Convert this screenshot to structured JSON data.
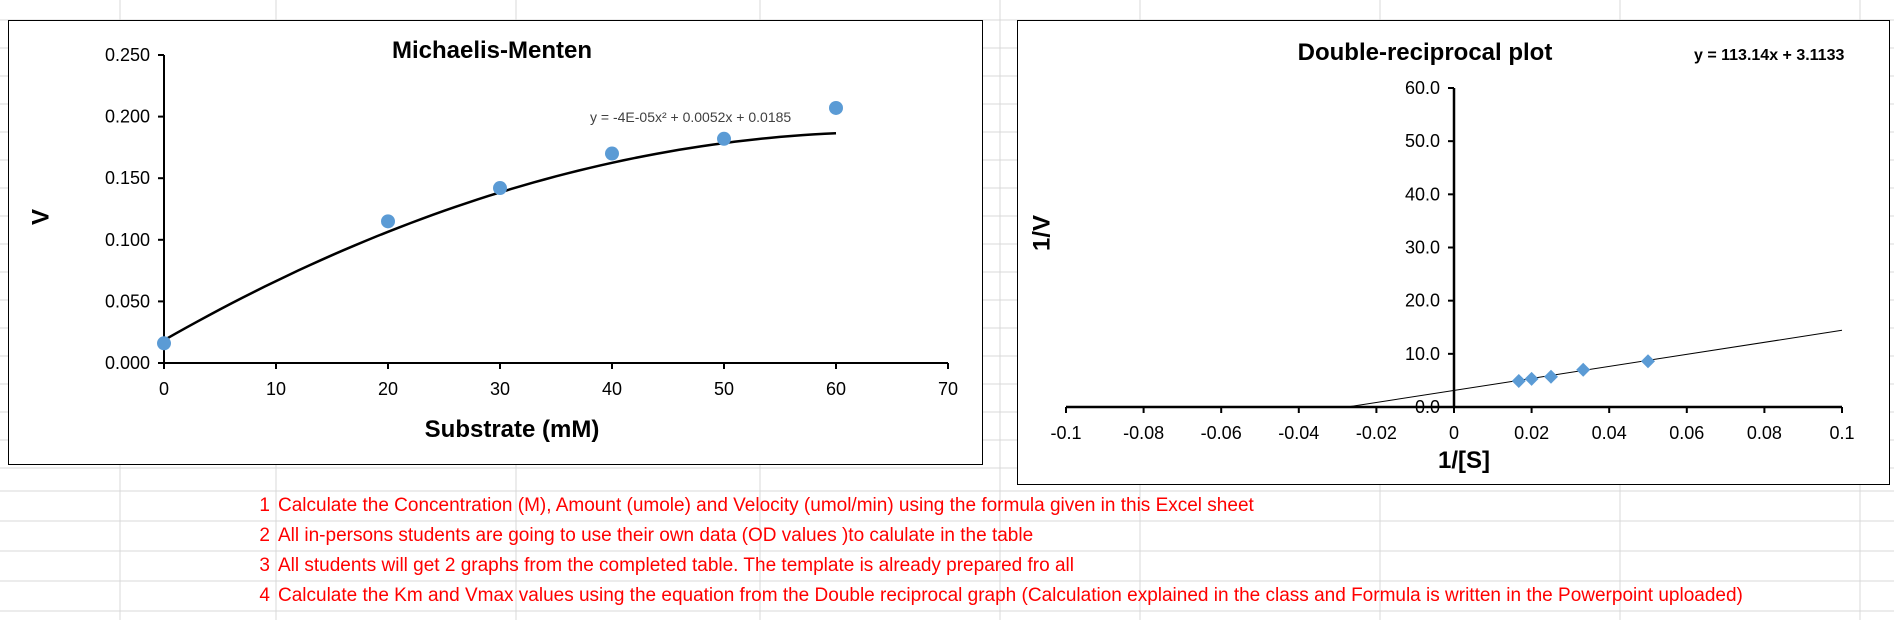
{
  "notes": [
    {
      "num": "1",
      "text": "Calculate the Concentration (M), Amount (umole) and Velocity (umol/min) using the formula given in this Excel sheet"
    },
    {
      "num": "2",
      "text": "All in-persons students are going to use their own data (OD values )to calulate in the table"
    },
    {
      "num": "3",
      "text": "All students will get 2 graphs from the completed table. The template is already prepared fro all"
    },
    {
      "num": "4",
      "text": "Calculate the Km and Vmax values using the equation from the Double reciprocal graph (Calculation explained in the class and Formula is written in the Powerpoint uploaded)"
    }
  ],
  "colors": {
    "marker": "#5B9BD5",
    "notes": "#FF0000",
    "grid": "#D9D9D9"
  },
  "chart_data": [
    {
      "type": "scatter",
      "title": "Michaelis-Menten",
      "xlabel": "Substrate (mM)",
      "ylabel": "V",
      "xlim": [
        0,
        70
      ],
      "ylim": [
        0,
        0.25
      ],
      "xticks": [
        "0",
        "10",
        "20",
        "30",
        "40",
        "50",
        "60",
        "70"
      ],
      "yticks": [
        "0.000",
        "0.050",
        "0.100",
        "0.150",
        "0.200",
        "0.250"
      ],
      "series": [
        {
          "x": [
            0,
            20,
            30,
            40,
            50,
            60
          ],
          "y": [
            0.016,
            0.115,
            0.142,
            0.17,
            0.182,
            0.207
          ],
          "marker": "circle"
        }
      ],
      "trendline": {
        "kind": "poly2",
        "coef": [
          -4e-05,
          0.0052,
          0.0185
        ],
        "label": "y = -4E-05x² + 0.0052x + 0.0185"
      },
      "grid": false,
      "legend": "none"
    },
    {
      "type": "scatter",
      "title": "Double-reciprocal plot",
      "xlabel": "1/[S]",
      "ylabel": "1/V",
      "xlim": [
        -0.1,
        0.1
      ],
      "ylim": [
        0,
        60
      ],
      "xticks": [
        "-0.1",
        "-0.08",
        "-0.06",
        "-0.04",
        "-0.02",
        "0",
        "0.02",
        "0.04",
        "0.06",
        "0.08",
        "0.1"
      ],
      "yticks": [
        "0.0",
        "10.0",
        "20.0",
        "30.0",
        "40.0",
        "50.0",
        "60.0"
      ],
      "series": [
        {
          "x": [
            0.0167,
            0.02,
            0.025,
            0.0333,
            0.05
          ],
          "y": [
            4.9,
            5.3,
            5.7,
            7.0,
            8.6
          ],
          "marker": "diamond"
        }
      ],
      "trendline": {
        "kind": "linear",
        "slope": 113.14,
        "intercept": 3.1133,
        "label": "y = 113.14x + 3.1133"
      },
      "grid": false,
      "legend": "none"
    }
  ]
}
